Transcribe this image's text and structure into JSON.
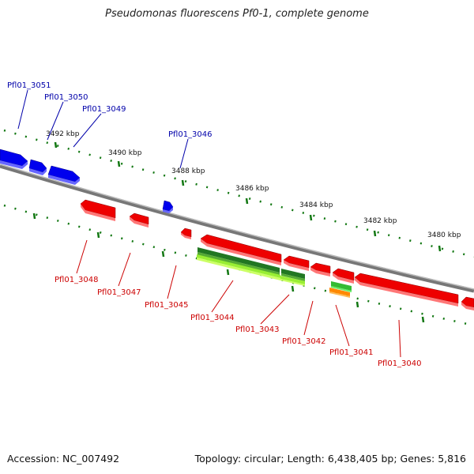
{
  "title": "Pseudomonas fluorescens Pf0-1, complete genome",
  "footer": {
    "accession": "Accession: NC_007492",
    "summary": "Topology: circular; Length: 6,438,405 bp; Genes: 5,816"
  },
  "colors": {
    "forward_gene": "#0000ee",
    "reverse_gene": "#ee0000",
    "rna_dark": "#227722",
    "rna_light": "#99ee33",
    "orange_feature": "#ff8800",
    "backbone": "#888888",
    "ticks": "#117711",
    "forward_label": "#0000aa",
    "reverse_label": "#cc0000"
  },
  "scale_labels": [
    "3492 kbp",
    "3490 kbp",
    "3488 kbp",
    "3486 kbp",
    "3484 kbp",
    "3482 kbp",
    "3480 kbp"
  ],
  "forward_genes": [
    "Pfl01_3051",
    "Pfl01_3050",
    "Pfl01_3049",
    "Pfl01_3046"
  ],
  "reverse_genes": [
    "Pfl01_3048",
    "Pfl01_3047",
    "Pfl01_3045",
    "Pfl01_3044",
    "Pfl01_3043",
    "Pfl01_3042",
    "Pfl01_3041",
    "Pfl01_3040"
  ]
}
